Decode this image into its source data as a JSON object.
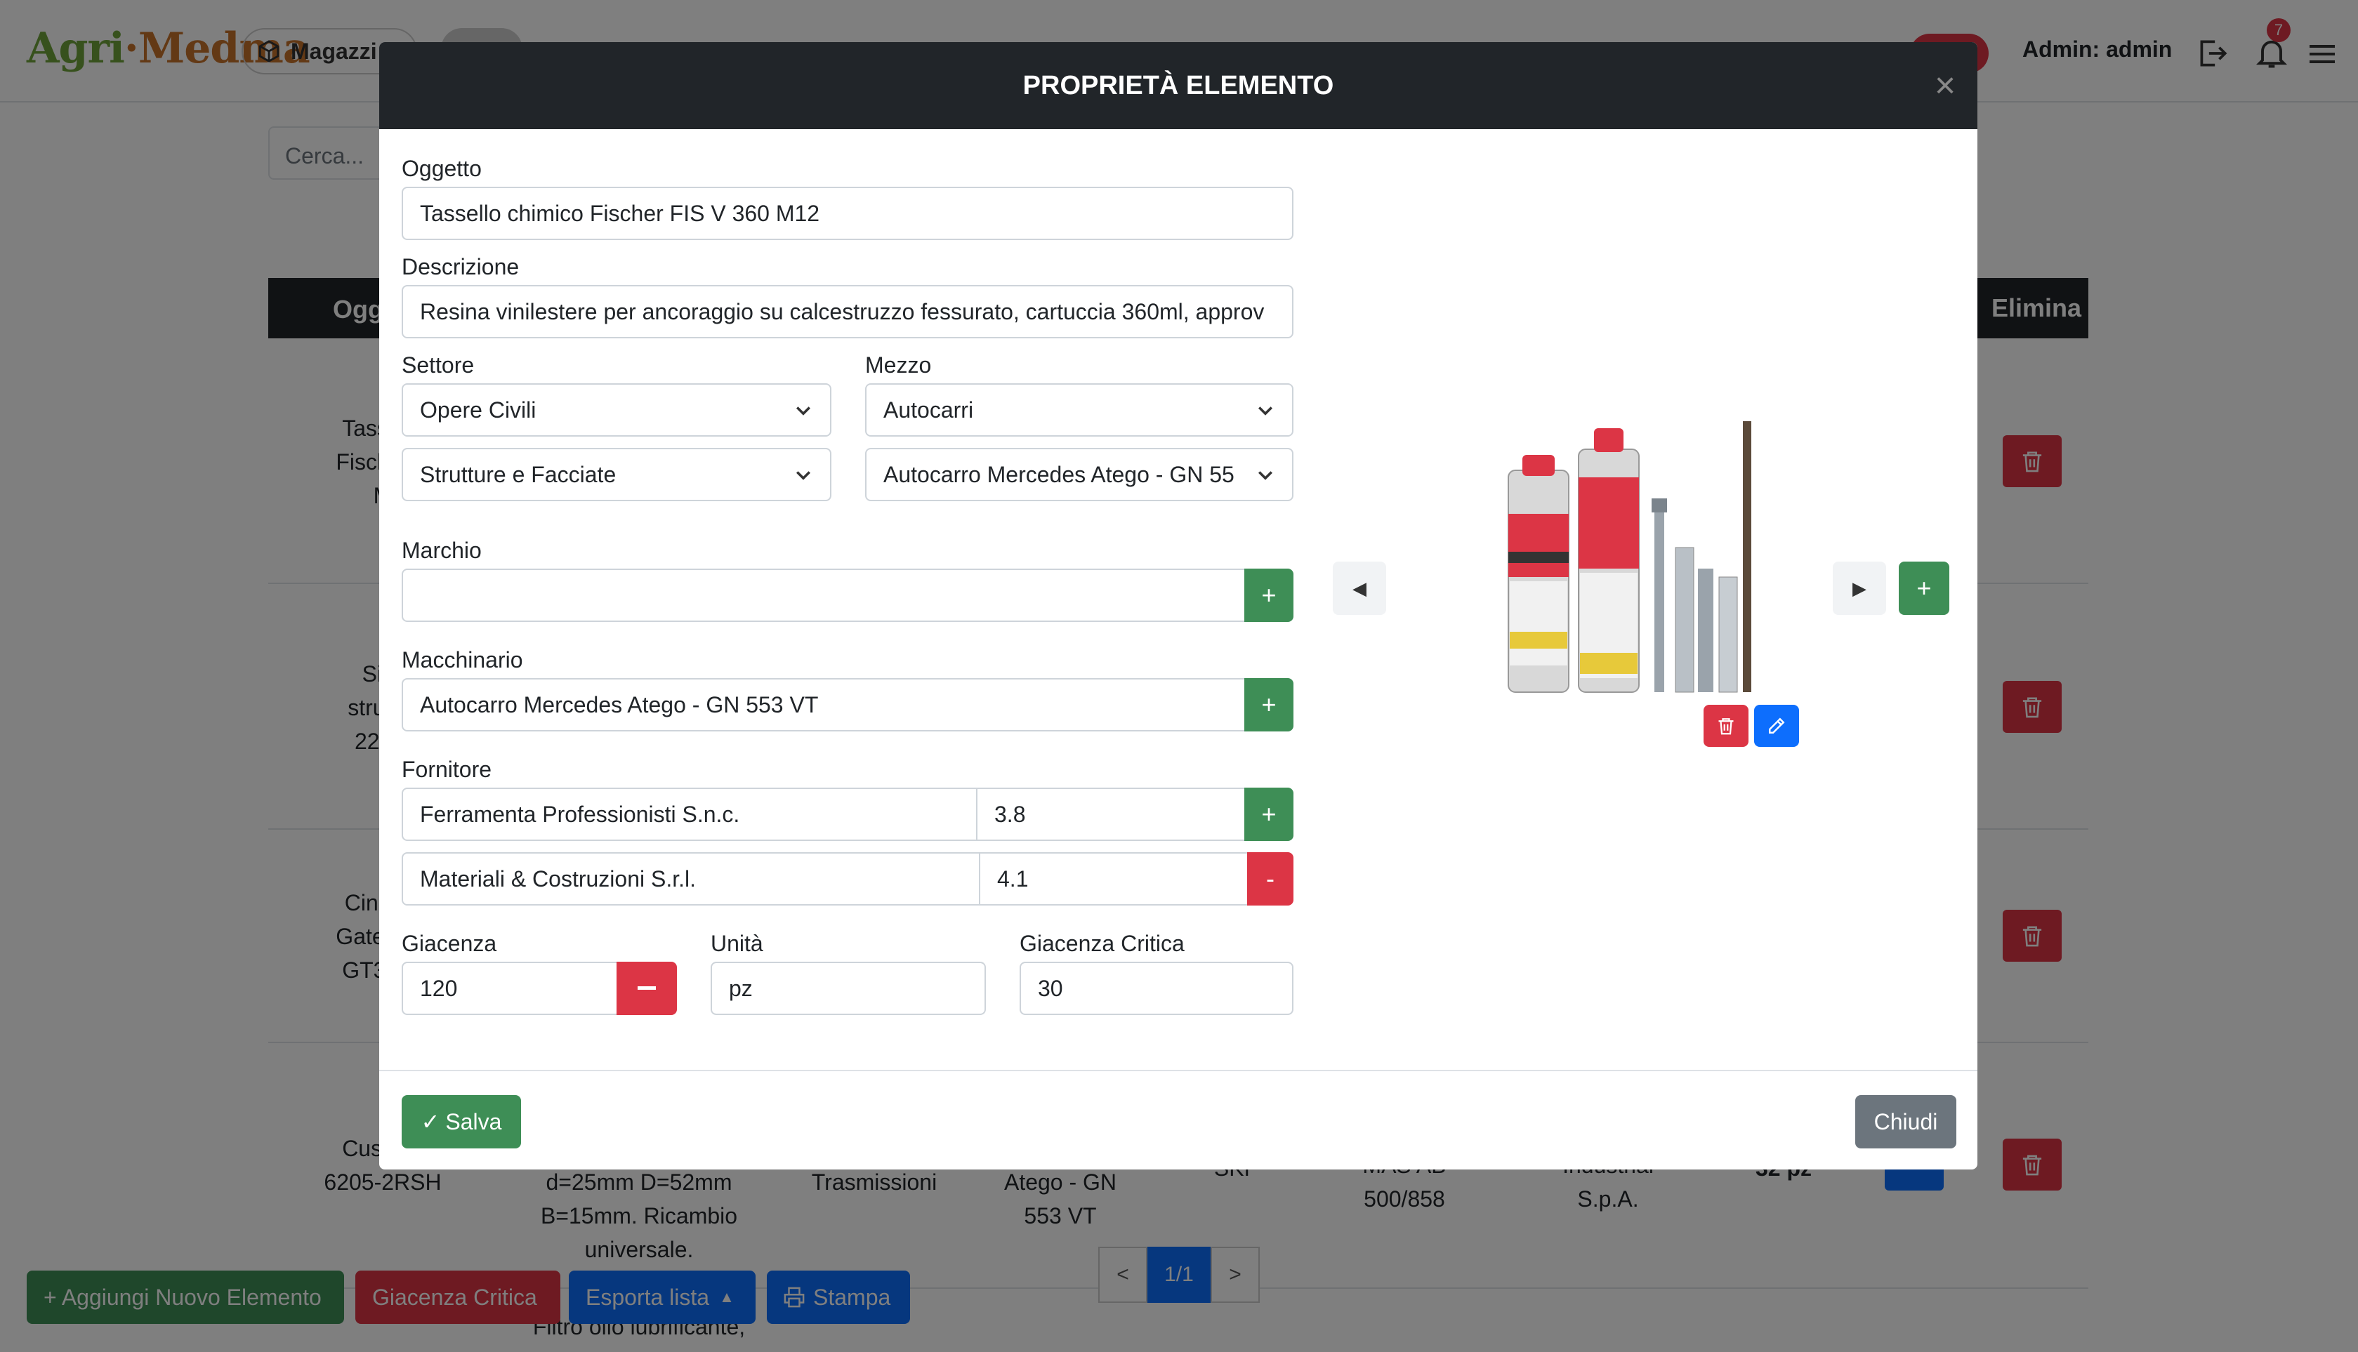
{
  "navbar": {
    "logo_part1": "Agri",
    "logo_sep": "·",
    "logo_part2": "Medma",
    "warehouse_label": "Magazzi",
    "admin_label": "Admin: admin",
    "notification_count": "7"
  },
  "background": {
    "search_placeholder": "Cerca...",
    "table_headers": {
      "oggetto": "Ogg",
      "elimina": "Elimina"
    },
    "rows": [
      {
        "lines": [
          "Tassello",
          "Fischer F",
          "M"
        ]
      },
      {
        "lines": [
          "Silic",
          "struttur",
          "221 3"
        ]
      },
      {
        "lines": [
          "Cinghia",
          "Gates Pe",
          "GT3 5M"
        ]
      },
      {
        "lines": [
          "Cuscine",
          "6205-2RSH"
        ]
      }
    ],
    "row4_cells": {
      "desc": [
        "d=25mm D=52mm",
        "B=15mm. Ricambio",
        "universale."
      ],
      "settore": "Trasmissioni",
      "mezzo": [
        "Atego - GN",
        "553 VT"
      ],
      "marchio": "SKF",
      "macchinario": [
        "MAS AB",
        "500/858"
      ],
      "fornitore": [
        "Industrial",
        "S.p.A."
      ],
      "giacenza": "32 pz"
    },
    "row5_desc": "Filtro olio lubrificante,",
    "pagination": {
      "prev": "<",
      "current": "1/1",
      "next": ">"
    },
    "buttons": {
      "add": "+ Aggiungi Nuovo Elemento",
      "critical": "Giacenza Critica",
      "export": "Esporta lista",
      "print": "Stampa"
    }
  },
  "modal": {
    "title": "PROPRIETÀ ELEMENTO",
    "close_glyph": "×",
    "oggetto": {
      "label": "Oggetto",
      "value": "Tassello chimico Fischer FIS V 360 M12"
    },
    "descrizione": {
      "label": "Descrizione",
      "value": "Resina vinilestere per ancoraggio su calcestruzzo fessurato, cartuccia 360ml, approv"
    },
    "settore": {
      "label": "Settore",
      "value": "Opere Civili",
      "sub_value": "Strutture e Facciate"
    },
    "mezzo": {
      "label": "Mezzo",
      "value": "Autocarri",
      "sub_value": "Autocarro Mercedes Atego - GN 55"
    },
    "marchio": {
      "label": "Marchio",
      "value": ""
    },
    "macchinario": {
      "label": "Macchinario",
      "value": "Autocarro Mercedes Atego - GN 553 VT"
    },
    "fornitore": {
      "label": "Fornitore",
      "rows": [
        {
          "name": "Ferramenta Professionisti S.n.c.",
          "price": "3.8"
        },
        {
          "name": "Materiali & Costruzioni S.r.l.",
          "price": "4.1"
        }
      ]
    },
    "giacenza": {
      "label": "Giacenza",
      "value": "120"
    },
    "unita": {
      "label": "Unità",
      "value": "pz"
    },
    "giacenza_critica": {
      "label": "Giacenza Critica",
      "value": "30"
    },
    "save_label": "Salva",
    "save_check": "✓",
    "close_label": "Chiudi",
    "plus": "+",
    "minus": "-",
    "image_prev": "◀",
    "image_next": "▶"
  },
  "colors": {
    "green": "#3e8e56",
    "red": "#dc3545",
    "blue": "#0d6efd",
    "dark": "#212529"
  }
}
